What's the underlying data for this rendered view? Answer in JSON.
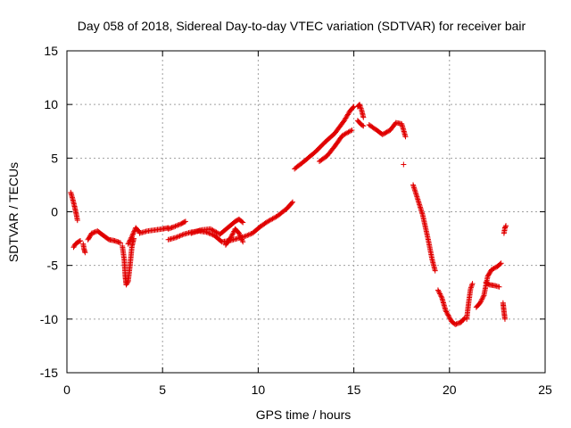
{
  "chart_data": {
    "type": "scatter",
    "title": "Day 058 of 2018, Sidereal Day-to-day VTEC variation (SDTVAR) for receiver bair",
    "xlabel": "GPS time / hours",
    "ylabel": "SDTVAR / TECUs",
    "xlim": [
      0,
      25
    ],
    "ylim": [
      -15,
      15
    ],
    "xticks": [
      "0",
      "5",
      "10",
      "15",
      "20",
      "25"
    ],
    "yticks": [
      "-15",
      "-10",
      "-5",
      "0",
      "5",
      "10",
      "15"
    ],
    "grid": true,
    "marker": "plus",
    "color": "#e00000",
    "series": [
      {
        "segments": [
          [
            [
              0.2,
              1.8
            ],
            [
              0.3,
              1.2
            ],
            [
              0.4,
              0.5
            ],
            [
              0.5,
              -0.3
            ],
            [
              0.55,
              -0.8
            ]
          ],
          [
            [
              0.35,
              -3.3
            ],
            [
              0.45,
              -3.0
            ],
            [
              0.6,
              -2.8
            ],
            [
              0.7,
              -2.7
            ]
          ],
          [
            [
              0.85,
              -3.0
            ],
            [
              0.9,
              -3.5
            ],
            [
              0.95,
              -3.8
            ]
          ],
          [
            [
              1.1,
              -2.6
            ],
            [
              1.3,
              -2.0
            ],
            [
              1.6,
              -1.8
            ],
            [
              1.9,
              -2.2
            ],
            [
              2.2,
              -2.6
            ],
            [
              2.5,
              -2.7
            ],
            [
              2.8,
              -2.9
            ]
          ],
          [
            [
              2.9,
              -3.2
            ],
            [
              3.0,
              -4.5
            ],
            [
              3.05,
              -6.0
            ],
            [
              3.1,
              -6.8
            ],
            [
              3.2,
              -6.5
            ],
            [
              3.3,
              -5.0
            ],
            [
              3.4,
              -3.2
            ],
            [
              3.5,
              -2.5
            ]
          ],
          [
            [
              3.2,
              -3.0
            ],
            [
              3.4,
              -2.3
            ],
            [
              3.6,
              -1.5
            ],
            [
              3.8,
              -1.9
            ]
          ],
          [
            [
              3.8,
              -2.0
            ],
            [
              4.2,
              -1.8
            ],
            [
              4.6,
              -1.7
            ],
            [
              5.0,
              -1.6
            ],
            [
              5.3,
              -1.5
            ]
          ],
          [
            [
              5.3,
              -2.6
            ],
            [
              5.7,
              -2.4
            ],
            [
              6.1,
              -2.1
            ],
            [
              6.5,
              -1.9
            ],
            [
              6.9,
              -1.8
            ],
            [
              7.3,
              -1.9
            ],
            [
              7.7,
              -2.2
            ],
            [
              8.1,
              -2.8
            ],
            [
              8.5,
              -2.7
            ],
            [
              8.9,
              -2.5
            ],
            [
              9.3,
              -2.3
            ],
            [
              9.7,
              -2.0
            ],
            [
              10.1,
              -1.4
            ]
          ],
          [
            [
              5.3,
              -1.6
            ],
            [
              5.6,
              -1.4
            ],
            [
              6.0,
              -1.1
            ],
            [
              6.2,
              -0.9
            ]
          ],
          [
            [
              6.5,
              -2.0
            ],
            [
              7.0,
              -1.7
            ],
            [
              7.5,
              -1.6
            ],
            [
              8.0,
              -2.1
            ],
            [
              8.4,
              -1.5
            ],
            [
              8.8,
              -0.9
            ],
            [
              9.0,
              -0.7
            ],
            [
              9.2,
              -1.0
            ]
          ],
          [
            [
              8.3,
              -3.1
            ],
            [
              8.6,
              -2.3
            ],
            [
              8.8,
              -1.6
            ],
            [
              9.0,
              -2.0
            ],
            [
              9.2,
              -2.8
            ]
          ],
          [
            [
              10.1,
              -1.4
            ],
            [
              10.5,
              -0.9
            ],
            [
              11.0,
              -0.4
            ],
            [
              11.5,
              0.3
            ],
            [
              11.8,
              0.9
            ]
          ],
          [
            [
              11.9,
              4.0
            ],
            [
              12.4,
              4.7
            ],
            [
              13.0,
              5.6
            ],
            [
              13.5,
              6.5
            ],
            [
              14.0,
              7.3
            ],
            [
              14.5,
              8.5
            ],
            [
              14.8,
              9.4
            ],
            [
              15.0,
              9.8
            ]
          ],
          [
            [
              13.2,
              4.7
            ],
            [
              13.6,
              5.2
            ],
            [
              14.0,
              6.1
            ],
            [
              14.4,
              7.1
            ],
            [
              14.9,
              7.6
            ]
          ],
          [
            [
              15.2,
              8.5
            ],
            [
              15.4,
              8.1
            ],
            [
              15.5,
              8.0
            ]
          ],
          [
            [
              15.2,
              9.8
            ],
            [
              15.3,
              10.0
            ],
            [
              15.4,
              9.5
            ],
            [
              15.5,
              8.8
            ]
          ],
          [
            [
              15.8,
              8.1
            ],
            [
              16.2,
              7.6
            ],
            [
              16.5,
              7.2
            ],
            [
              16.9,
              7.6
            ],
            [
              17.2,
              8.3
            ],
            [
              17.5,
              8.2
            ],
            [
              17.7,
              7.0
            ]
          ],
          [
            [
              17.6,
              4.4
            ]
          ],
          [
            [
              18.1,
              2.5
            ],
            [
              18.3,
              1.4
            ],
            [
              18.6,
              -0.3
            ],
            [
              18.9,
              -2.7
            ],
            [
              19.1,
              -4.5
            ],
            [
              19.25,
              -5.5
            ]
          ],
          [
            [
              19.4,
              -7.3
            ],
            [
              19.6,
              -8.0
            ],
            [
              19.8,
              -9.2
            ],
            [
              20.1,
              -10.2
            ],
            [
              20.3,
              -10.5
            ],
            [
              20.6,
              -10.3
            ],
            [
              20.8,
              -9.9
            ]
          ],
          [
            [
              20.9,
              -10.0
            ],
            [
              21.0,
              -8.5
            ],
            [
              21.1,
              -7.2
            ],
            [
              21.2,
              -6.7
            ]
          ],
          [
            [
              21.4,
              -8.9
            ],
            [
              21.6,
              -8.5
            ],
            [
              21.8,
              -7.8
            ],
            [
              22.0,
              -6.0
            ],
            [
              22.2,
              -5.4
            ],
            [
              22.5,
              -5.1
            ],
            [
              22.7,
              -4.8
            ]
          ],
          [
            [
              21.9,
              -6.6
            ],
            [
              22.1,
              -6.8
            ],
            [
              22.4,
              -6.9
            ],
            [
              22.6,
              -7.0
            ]
          ],
          [
            [
              22.8,
              -8.5
            ],
            [
              22.85,
              -9.3
            ],
            [
              22.9,
              -10.0
            ]
          ],
          [
            [
              22.85,
              -2.0
            ],
            [
              22.9,
              -1.5
            ],
            [
              22.95,
              -1.3
            ]
          ]
        ]
      }
    ]
  }
}
